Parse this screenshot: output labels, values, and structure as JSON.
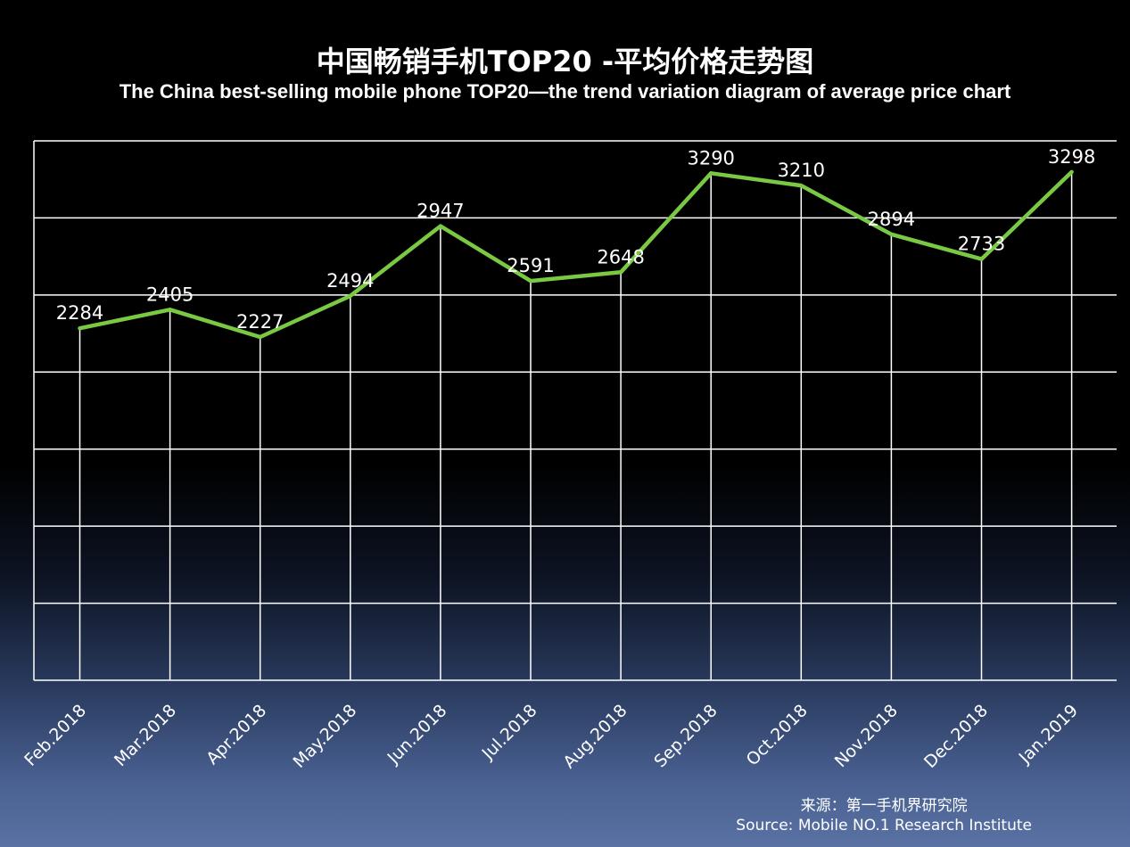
{
  "chart_data": {
    "type": "line",
    "title": "中国畅销手机TOP20 -平均价格走势图",
    "subtitle": "The China best-selling mobile phone TOP20—the trend variation diagram of average price chart",
    "categories": [
      "Feb.2018",
      "Mar.2018",
      "Apr.2018",
      "May.2018",
      "Jun.2018",
      "Jul.2018",
      "Aug.2018",
      "Sep.2018",
      "Oct.2018",
      "Nov.2018",
      "Dec.2018",
      "Jan.2019"
    ],
    "series": [
      {
        "values": [
          2284,
          2405,
          2227,
          2494,
          2947,
          2591,
          2648,
          3290,
          3210,
          2894,
          2733,
          3298
        ]
      }
    ],
    "ylim": [
      0,
      3500
    ],
    "y_gridline_step": 500,
    "y_tick_labels_shown": false,
    "grid": true,
    "line_color": "#7ac943",
    "grid_color": "#ffffff"
  },
  "source": {
    "cn": "来源：第一手机界研究院",
    "en": "Source: Mobile NO.1 Research Institute"
  }
}
